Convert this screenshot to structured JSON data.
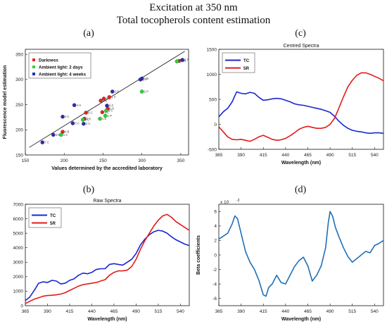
{
  "header": {
    "title": "Excitation at 350 nm",
    "subtitle": "Total tocopherols content estimation"
  },
  "panel_labels": [
    "(a)",
    "(b)",
    "(c)",
    "(d)"
  ],
  "chart_data": [
    {
      "id": "a",
      "type": "scatter",
      "title": "",
      "xlabel": "Values determined by the accredited laboratory",
      "ylabel": "Fluorescence model estimation",
      "xlim": [
        150,
        360
      ],
      "ylim": [
        150,
        360
      ],
      "xticks": [
        150,
        200,
        250,
        300,
        350
      ],
      "yticks": [
        150,
        200,
        250,
        300,
        350
      ],
      "legend_position": "top-left",
      "regression_line": [
        [
          155,
          165
        ],
        [
          355,
          356
        ]
      ],
      "series": [
        {
          "name": "Darkness",
          "color": "#e8231f",
          "points": [
            [
              198,
              196
            ],
            [
              226,
              222
            ],
            [
              228,
              234
            ],
            [
              247,
              258
            ],
            [
              249,
              235
            ],
            [
              251,
              262
            ],
            [
              256,
              242
            ],
            [
              258,
              265
            ],
            [
              348,
              337
            ]
          ],
          "labels": [
            "4 B",
            "2 C",
            "8 C",
            "4 E",
            "7 C",
            "6 C",
            "2 F",
            "1 P",
            "5 R"
          ]
        },
        {
          "name": "Ambient light: 2 days",
          "color": "#2bd336",
          "points": [
            [
              196,
              190
            ],
            [
              224,
              220
            ],
            [
              246,
              222
            ],
            [
              253,
              228
            ],
            [
              254,
              238
            ],
            [
              300,
              276
            ],
            [
              345,
              336
            ]
          ],
          "labels": [
            "1 C",
            "3 C",
            "1 E",
            "1 P",
            "3 C",
            "2 P",
            "5 R"
          ]
        },
        {
          "name": "Ambient light: 4 weeks",
          "color": "#2a2cb0",
          "points": [
            [
              172,
              175
            ],
            [
              186,
              190
            ],
            [
              198,
              226
            ],
            [
              211,
              213
            ],
            [
              213,
              249
            ],
            [
              225,
              212
            ],
            [
              255,
              248
            ],
            [
              262,
              276
            ],
            [
              298,
              300
            ],
            [
              300,
              302
            ],
            [
              352,
              339
            ]
          ],
          "labels": [
            "7 C",
            "3 E",
            "3 C",
            "3 C",
            "4 H",
            "2 C",
            "6 E",
            "2 P",
            "2 P",
            "1 B",
            "5 R"
          ]
        }
      ]
    },
    {
      "id": "b",
      "type": "line",
      "title": "Raw Spectra",
      "xlabel": "Wavelength (nm)",
      "ylabel": "",
      "xlim": [
        365,
        550
      ],
      "ylim": [
        0,
        7000
      ],
      "xticks": [
        365,
        390,
        415,
        440,
        465,
        490,
        515,
        540
      ],
      "yticks": [
        0,
        1000,
        2000,
        3000,
        4000,
        5000,
        6000,
        7000
      ],
      "legend_position": "top-left",
      "x": [
        365,
        370,
        375,
        380,
        385,
        390,
        395,
        400,
        405,
        410,
        415,
        420,
        425,
        430,
        435,
        440,
        445,
        450,
        455,
        460,
        465,
        470,
        475,
        480,
        485,
        490,
        495,
        500,
        505,
        510,
        515,
        520,
        525,
        530,
        535,
        540,
        545,
        550
      ],
      "series": [
        {
          "name": "TC",
          "color": "#1a27d0",
          "values": [
            350,
            600,
            1050,
            1550,
            1650,
            1600,
            1750,
            1700,
            1500,
            1550,
            1750,
            1850,
            2100,
            2250,
            2200,
            2300,
            2500,
            2550,
            2550,
            2850,
            2900,
            2850,
            2800,
            3000,
            3200,
            3600,
            4200,
            4600,
            4900,
            5100,
            5200,
            5150,
            5000,
            4750,
            4550,
            4400,
            4250,
            4150
          ]
        },
        {
          "name": "5R",
          "color": "#e31a1a",
          "values": [
            150,
            300,
            450,
            550,
            650,
            700,
            720,
            750,
            800,
            900,
            1050,
            1200,
            1350,
            1450,
            1500,
            1550,
            1600,
            1700,
            1800,
            2100,
            2300,
            2400,
            2400,
            2450,
            2700,
            3200,
            3900,
            4500,
            5000,
            5500,
            5900,
            6200,
            6300,
            6100,
            5800,
            5600,
            5400,
            5200
          ]
        }
      ]
    },
    {
      "id": "c",
      "type": "line",
      "title": "Centred Spectra",
      "xlabel": "Wavelength (nm)",
      "ylabel": "",
      "xlim": [
        365,
        550
      ],
      "ylim": [
        -500,
        1500
      ],
      "xticks": [
        365,
        390,
        415,
        440,
        465,
        490,
        515,
        540
      ],
      "yticks": [
        -500,
        0,
        500,
        1000,
        1500
      ],
      "legend_position": "top-left",
      "x": [
        365,
        370,
        375,
        380,
        385,
        390,
        395,
        400,
        405,
        410,
        415,
        420,
        425,
        430,
        435,
        440,
        445,
        450,
        455,
        460,
        465,
        470,
        475,
        480,
        485,
        490,
        495,
        500,
        505,
        510,
        515,
        520,
        525,
        530,
        535,
        540,
        545,
        550
      ],
      "series": [
        {
          "name": "TC",
          "color": "#1a27d0",
          "values": [
            150,
            250,
            320,
            450,
            650,
            620,
            610,
            640,
            620,
            540,
            480,
            490,
            510,
            520,
            510,
            480,
            450,
            410,
            390,
            380,
            360,
            340,
            320,
            300,
            270,
            240,
            160,
            60,
            -20,
            -80,
            -120,
            -140,
            -150,
            -170,
            -180,
            -170,
            -170,
            -180
          ]
        },
        {
          "name": "5R",
          "color": "#e31a1a",
          "values": [
            -50,
            -150,
            -250,
            -300,
            -310,
            -300,
            -320,
            -340,
            -300,
            -250,
            -220,
            -260,
            -300,
            -320,
            -310,
            -280,
            -230,
            -170,
            -100,
            -60,
            -40,
            -60,
            -80,
            -80,
            -60,
            0,
            120,
            330,
            550,
            750,
            880,
            980,
            1030,
            1030,
            1000,
            960,
            920,
            870
          ]
        }
      ]
    },
    {
      "id": "d",
      "type": "line",
      "title": "",
      "xlabel": "Wavelength (nm)",
      "ylabel": "Beta coefficients",
      "exponent_label": "x 10",
      "exponent_power": "-3",
      "xlim": [
        365,
        550
      ],
      "ylim": [
        -7,
        7
      ],
      "xticks": [
        365,
        390,
        415,
        440,
        465,
        490,
        515,
        540
      ],
      "yticks": [
        -6,
        -4,
        -2,
        0,
        2,
        4,
        6
      ],
      "x": [
        365,
        370,
        375,
        380,
        383,
        386,
        390,
        395,
        400,
        405,
        410,
        415,
        418,
        421,
        425,
        430,
        435,
        440,
        445,
        450,
        455,
        460,
        465,
        470,
        475,
        480,
        485,
        488,
        490,
        493,
        496,
        500,
        505,
        510,
        515,
        520,
        525,
        530,
        535,
        540,
        545,
        550
      ],
      "series": [
        {
          "name": "",
          "color": "#1f6fb8",
          "values": [
            2.2,
            2.6,
            3.0,
            4.3,
            5.4,
            5.0,
            3.0,
            0.5,
            -1.0,
            -2.0,
            -3.5,
            -5.5,
            -5.7,
            -4.5,
            -4.0,
            -2.8,
            -3.8,
            -4.0,
            -2.8,
            -1.6,
            -0.8,
            -0.3,
            -1.5,
            -3.6,
            -2.8,
            -1.5,
            1.0,
            4.5,
            6.0,
            5.3,
            3.8,
            2.5,
            1.0,
            -0.2,
            -1.0,
            -0.5,
            0.0,
            0.5,
            0.3,
            1.3,
            1.6,
            2.0
          ]
        }
      ]
    }
  ]
}
